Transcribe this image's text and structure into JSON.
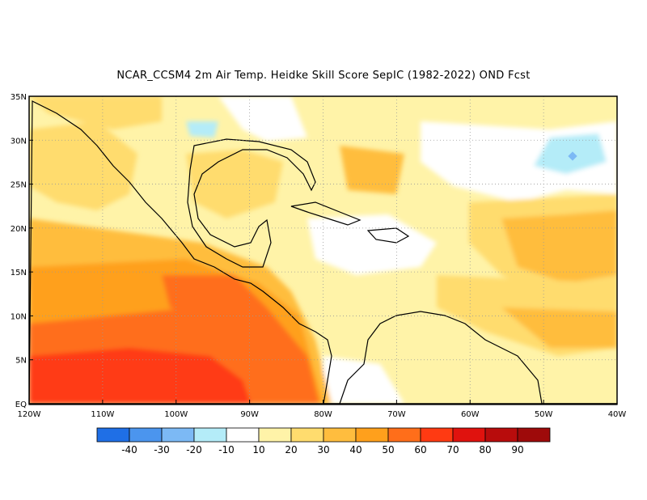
{
  "title": "NCAR_CCSM4  2m Air Temp. Heidke Skill Score SepIC (1982-2022) OND Fcst",
  "axes": {
    "lat_labels": [
      "35N",
      "30N",
      "25N",
      "20N",
      "15N",
      "10N",
      "5N",
      "EQ"
    ],
    "lat_values": [
      35,
      30,
      25,
      20,
      15,
      10,
      5,
      0
    ],
    "lon_labels": [
      "120W",
      "110W",
      "100W",
      "90W",
      "80W",
      "70W",
      "60W",
      "50W",
      "40W"
    ],
    "lon_values": [
      -120,
      -110,
      -100,
      -90,
      -80,
      -70,
      -60,
      -50,
      -40
    ],
    "lon_range": [
      -120,
      -40
    ],
    "lat_range": [
      0,
      35
    ],
    "grid": "dotted"
  },
  "colorbar": {
    "labels": [
      "-40",
      "-30",
      "-20",
      "-10",
      "10",
      "20",
      "30",
      "40",
      "50",
      "60",
      "70",
      "80",
      "90"
    ],
    "colors": [
      "#1f6fe6",
      "#4b95ee",
      "#7cb9f5",
      "#b4ecf8",
      "#ffffff",
      "#fff3a8",
      "#ffdc6e",
      "#ffbd3e",
      "#ffa01c",
      "#ff6e1a",
      "#ff3a12",
      "#e0120e",
      "#b80c0c",
      "#9e0a0a"
    ]
  },
  "field_colors": {
    "c10": "#ffffff",
    "c20": "#fff3a8",
    "c30": "#ffdc6e",
    "c40": "#ffbd3e",
    "c50": "#ffa01c",
    "c60": "#ff6e1a",
    "c70": "#ff3a12",
    "neg10": "#b4ecf8",
    "neg20": "#7cb9f5"
  }
}
